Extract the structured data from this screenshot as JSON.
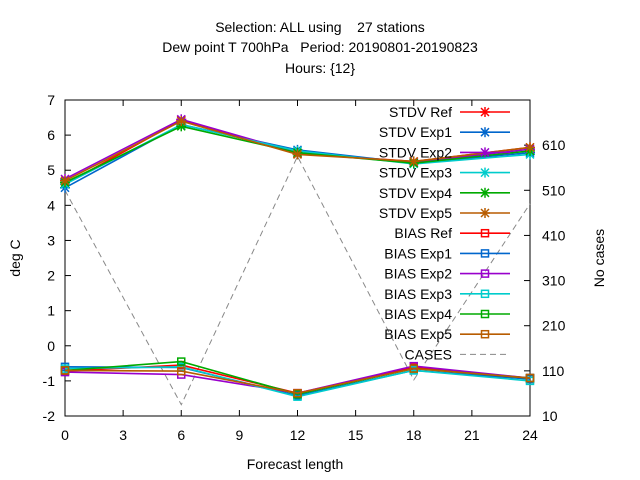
{
  "title_lines": [
    "Selection: ALL using    27 stations",
    "Dew point T 700hPa   Period: 20190801-20190823",
    "Hours: {12}"
  ],
  "chart_data": {
    "type": "line",
    "xlabel": "Forecast length",
    "ylabel": "deg C",
    "y2label": "No cases",
    "x": [
      0,
      6,
      12,
      18,
      24
    ],
    "xlim": [
      0,
      24
    ],
    "ylim": [
      -2,
      7
    ],
    "y2lim": [
      10,
      710
    ],
    "xticks": [
      "0",
      "3",
      "6",
      "9",
      "12",
      "15",
      "18",
      "21",
      "24"
    ],
    "yticks": [
      "-2",
      "-1",
      "0",
      "1",
      "2",
      "3",
      "4",
      "5",
      "6",
      "7"
    ],
    "y2ticks": [
      "10",
      "110",
      "210",
      "310",
      "410",
      "510",
      "610"
    ],
    "grid": false,
    "legend_position": "top-right",
    "series": [
      {
        "name": "STDV Ref",
        "kind": "stdv",
        "color": "#ff0000",
        "values": [
          4.6,
          6.43,
          5.47,
          5.25,
          5.65
        ]
      },
      {
        "name": "STDV Exp1",
        "kind": "stdv",
        "color": "#0066cc",
        "values": [
          4.5,
          6.3,
          5.58,
          5.2,
          5.5
        ]
      },
      {
        "name": "STDV Exp2",
        "kind": "stdv",
        "color": "#9900cc",
        "values": [
          4.75,
          6.45,
          5.5,
          5.22,
          5.6
        ]
      },
      {
        "name": "STDV Exp3",
        "kind": "stdv",
        "color": "#00cccc",
        "values": [
          4.6,
          6.3,
          5.55,
          5.18,
          5.45
        ]
      },
      {
        "name": "STDV Exp4",
        "kind": "stdv",
        "color": "#00aa00",
        "values": [
          4.65,
          6.25,
          5.5,
          5.2,
          5.55
        ]
      },
      {
        "name": "STDV Exp5",
        "kind": "stdv",
        "color": "#b85c00",
        "values": [
          4.7,
          6.4,
          5.45,
          5.25,
          5.65
        ]
      },
      {
        "name": "BIAS Ref",
        "kind": "bias",
        "color": "#ff0000",
        "values": [
          -0.72,
          -0.55,
          -1.35,
          -0.62,
          -0.92
        ]
      },
      {
        "name": "BIAS Exp1",
        "kind": "bias",
        "color": "#0066cc",
        "values": [
          -0.6,
          -0.62,
          -1.42,
          -0.7,
          -0.95
        ]
      },
      {
        "name": "BIAS Exp2",
        "kind": "bias",
        "color": "#9900cc",
        "values": [
          -0.75,
          -0.82,
          -1.35,
          -0.58,
          -0.92
        ]
      },
      {
        "name": "BIAS Exp3",
        "kind": "bias",
        "color": "#00cccc",
        "values": [
          -0.65,
          -0.6,
          -1.45,
          -0.7,
          -1.0
        ]
      },
      {
        "name": "BIAS Exp4",
        "kind": "bias",
        "color": "#00aa00",
        "values": [
          -0.7,
          -0.45,
          -1.38,
          -0.65,
          -0.92
        ]
      },
      {
        "name": "BIAS Exp5",
        "kind": "bias",
        "color": "#b85c00",
        "values": [
          -0.7,
          -0.72,
          -1.35,
          -0.65,
          -0.92
        ]
      },
      {
        "name": "CASES",
        "kind": "cases",
        "axis": "y2",
        "color": "#888888",
        "values": [
          510,
          35,
          585,
          90,
          480
        ]
      }
    ]
  }
}
